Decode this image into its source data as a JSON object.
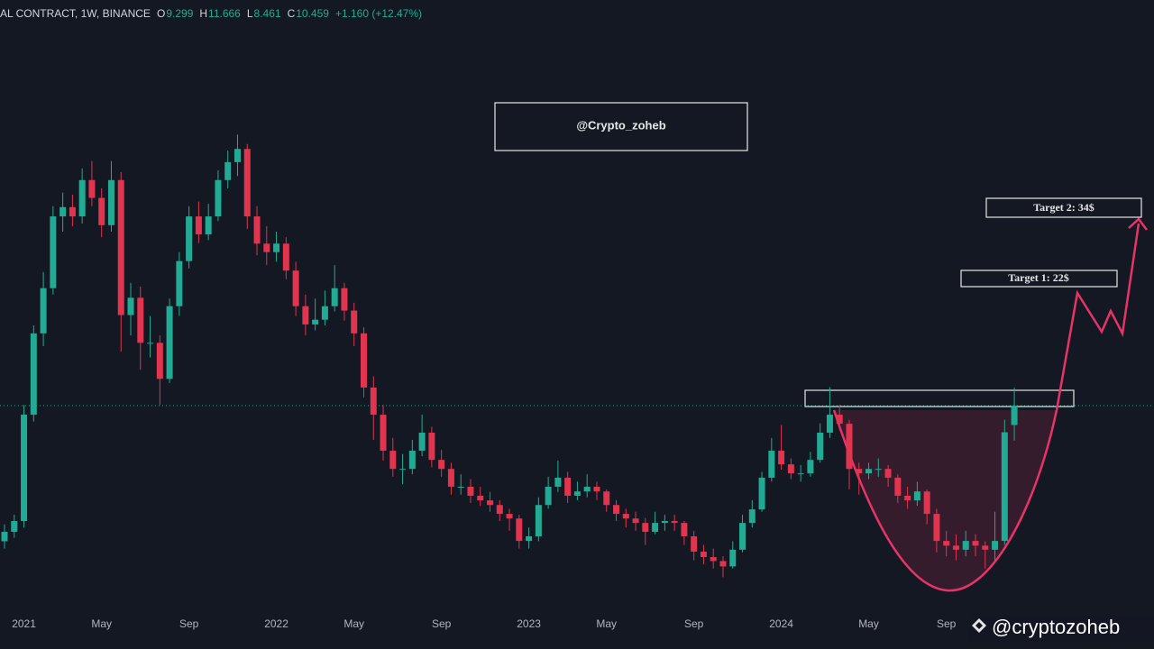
{
  "header": {
    "symbol": "AL CONTRACT, 1W, BINANCE",
    "o": "O",
    "h": "H",
    "l": "L",
    "c": "C",
    "change": "+1.160 (+12.47%)"
  },
  "annotations": {
    "author_box": "@Crypto_zoheb",
    "target_1": "Target 1: 22$",
    "target_2": "Target 2: 34$",
    "watermark": "@cryptozoheb"
  },
  "chart_data": {
    "type": "candlestick",
    "log_scale": true,
    "ylim": [
      2.98,
      122
    ],
    "up_color": "#22ab94",
    "down_color": "#e0344f",
    "categories": [
      null,
      null,
      "2021",
      null,
      null,
      null,
      null,
      null,
      null,
      null,
      "May",
      null,
      null,
      null,
      null,
      null,
      null,
      null,
      null,
      "Sep",
      null,
      null,
      null,
      null,
      null,
      null,
      null,
      null,
      "2022",
      null,
      null,
      null,
      null,
      null,
      null,
      null,
      "May",
      null,
      null,
      null,
      null,
      null,
      null,
      null,
      null,
      "Sep",
      null,
      null,
      null,
      null,
      null,
      null,
      null,
      null,
      "2023",
      null,
      null,
      null,
      null,
      null,
      null,
      null,
      "May",
      null,
      null,
      null,
      null,
      null,
      null,
      null,
      null,
      "Sep",
      null,
      null,
      null,
      null,
      null,
      null,
      null,
      null,
      "2024",
      null,
      null,
      null,
      null,
      null,
      null,
      null,
      null,
      "May",
      null,
      null,
      null,
      null,
      null,
      null,
      null,
      "Sep",
      null,
      null,
      null,
      null,
      null,
      null,
      null
    ],
    "ohlc": [
      [
        4.6,
        5.1,
        4.4,
        4.87
      ],
      [
        4.87,
        5.4,
        4.7,
        5.2
      ],
      [
        5.2,
        10.5,
        5.0,
        9.9
      ],
      [
        9.9,
        17.0,
        9.5,
        16.2
      ],
      [
        16.2,
        23.5,
        15.0,
        21.3
      ],
      [
        21.3,
        35.0,
        20.5,
        32.9
      ],
      [
        32.9,
        38.0,
        30.0,
        34.8
      ],
      [
        34.8,
        37.5,
        31.0,
        32.9
      ],
      [
        32.9,
        44.0,
        31.5,
        41.0
      ],
      [
        41.0,
        46.0,
        35.0,
        36.8
      ],
      [
        36.8,
        39.0,
        29.0,
        31.2
      ],
      [
        31.2,
        46.0,
        30.0,
        41.0
      ],
      [
        41.0,
        43.0,
        14.5,
        18.1
      ],
      [
        18.1,
        22.0,
        16.0,
        20.1
      ],
      [
        20.1,
        21.5,
        13.0,
        15.3
      ],
      [
        15.3,
        18.0,
        14.0,
        15.3
      ],
      [
        15.3,
        16.0,
        10.5,
        12.3
      ],
      [
        12.3,
        20.0,
        12.0,
        19.1
      ],
      [
        19.1,
        26.5,
        18.0,
        25.1
      ],
      [
        25.1,
        35.0,
        24.0,
        32.9
      ],
      [
        32.9,
        36.0,
        28.0,
        29.5
      ],
      [
        29.5,
        35.5,
        28.5,
        32.9
      ],
      [
        32.9,
        43.5,
        32.0,
        41.0
      ],
      [
        41.0,
        49.0,
        39.0,
        45.7
      ],
      [
        45.7,
        54.0,
        42.0,
        49.5
      ],
      [
        49.5,
        51.0,
        30.5,
        32.9
      ],
      [
        32.9,
        35.0,
        26.0,
        27.9
      ],
      [
        27.9,
        31.0,
        24.5,
        26.5
      ],
      [
        26.5,
        30.0,
        25.0,
        27.9
      ],
      [
        27.9,
        29.0,
        22.5,
        23.7
      ],
      [
        23.7,
        25.0,
        18.0,
        19.1
      ],
      [
        19.1,
        20.5,
        16.0,
        17.1
      ],
      [
        17.1,
        20.0,
        16.5,
        17.6
      ],
      [
        17.6,
        21.0,
        17.0,
        19.1
      ],
      [
        19.1,
        24.5,
        18.5,
        21.3
      ],
      [
        21.3,
        22.0,
        17.5,
        18.6
      ],
      [
        18.6,
        19.5,
        15.0,
        16.2
      ],
      [
        16.2,
        16.8,
        11.0,
        11.67
      ],
      [
        11.67,
        12.5,
        8.5,
        9.9
      ],
      [
        9.9,
        10.5,
        7.5,
        7.96
      ],
      [
        7.96,
        8.6,
        6.8,
        7.13
      ],
      [
        7.13,
        7.8,
        6.5,
        7.13
      ],
      [
        7.13,
        8.5,
        6.9,
        7.96
      ],
      [
        7.96,
        9.9,
        7.7,
        8.88
      ],
      [
        8.88,
        9.2,
        7.2,
        7.53
      ],
      [
        7.53,
        8.0,
        6.8,
        7.13
      ],
      [
        7.13,
        7.4,
        6.1,
        6.4
      ],
      [
        6.4,
        6.9,
        6.1,
        6.4
      ],
      [
        6.4,
        6.7,
        5.8,
        6.06
      ],
      [
        6.06,
        6.4,
        5.7,
        5.89
      ],
      [
        5.89,
        6.2,
        5.5,
        5.73
      ],
      [
        5.73,
        5.9,
        5.2,
        5.43
      ],
      [
        5.43,
        5.6,
        4.9,
        5.28
      ],
      [
        5.28,
        5.4,
        4.4,
        4.61
      ],
      [
        4.61,
        5.0,
        4.4,
        4.74
      ],
      [
        4.74,
        6.0,
        4.6,
        5.73
      ],
      [
        5.73,
        6.8,
        5.6,
        6.4
      ],
      [
        6.4,
        7.5,
        6.2,
        6.76
      ],
      [
        6.76,
        7.0,
        5.8,
        6.06
      ],
      [
        6.06,
        6.6,
        5.9,
        6.22
      ],
      [
        6.22,
        6.9,
        6.0,
        6.4
      ],
      [
        6.4,
        6.6,
        5.9,
        6.22
      ],
      [
        6.22,
        6.3,
        5.5,
        5.73
      ],
      [
        5.73,
        5.9,
        5.2,
        5.43
      ],
      [
        5.43,
        5.6,
        5.0,
        5.28
      ],
      [
        5.28,
        5.5,
        4.9,
        5.14
      ],
      [
        5.14,
        5.3,
        4.5,
        4.87
      ],
      [
        4.87,
        5.5,
        4.8,
        5.14
      ],
      [
        5.14,
        5.4,
        4.9,
        5.2
      ],
      [
        5.2,
        5.4,
        4.9,
        5.14
      ],
      [
        5.14,
        5.2,
        4.5,
        4.74
      ],
      [
        4.74,
        4.9,
        4.1,
        4.32
      ],
      [
        4.32,
        4.5,
        4.0,
        4.18
      ],
      [
        4.18,
        4.4,
        3.9,
        4.08
      ],
      [
        4.08,
        4.2,
        3.7,
        3.95
      ],
      [
        3.95,
        4.6,
        3.9,
        4.37
      ],
      [
        4.37,
        5.4,
        4.3,
        5.14
      ],
      [
        5.14,
        5.9,
        5.0,
        5.58
      ],
      [
        5.58,
        7.0,
        5.5,
        6.76
      ],
      [
        6.76,
        8.6,
        6.6,
        7.96
      ],
      [
        7.96,
        9.3,
        7.1,
        7.33
      ],
      [
        7.33,
        7.6,
        6.7,
        6.94
      ],
      [
        6.94,
        7.3,
        6.6,
        6.94
      ],
      [
        6.94,
        7.9,
        6.8,
        7.53
      ],
      [
        7.53,
        9.4,
        7.4,
        8.88
      ],
      [
        8.88,
        11.7,
        8.6,
        9.9
      ],
      [
        9.9,
        10.5,
        9.0,
        9.37
      ],
      [
        9.37,
        9.6,
        6.3,
        7.13
      ],
      [
        7.13,
        7.4,
        6.1,
        6.94
      ],
      [
        6.94,
        7.4,
        6.7,
        7.13
      ],
      [
        7.13,
        7.6,
        6.8,
        7.13
      ],
      [
        7.13,
        7.3,
        6.4,
        6.76
      ],
      [
        6.76,
        6.9,
        5.8,
        6.06
      ],
      [
        6.06,
        6.4,
        5.6,
        5.89
      ],
      [
        5.89,
        6.6,
        5.7,
        6.22
      ],
      [
        6.22,
        6.3,
        5.1,
        5.43
      ],
      [
        5.43,
        5.6,
        4.3,
        4.61
      ],
      [
        4.61,
        4.9,
        4.2,
        4.48
      ],
      [
        4.48,
        4.8,
        4.1,
        4.37
      ],
      [
        4.37,
        4.9,
        4.2,
        4.61
      ],
      [
        4.61,
        4.8,
        4.2,
        4.48
      ],
      [
        4.48,
        4.6,
        3.9,
        4.37
      ],
      [
        4.37,
        5.5,
        4.1,
        4.61
      ],
      [
        4.61,
        9.6,
        4.5,
        8.9
      ],
      [
        9.299,
        11.666,
        8.461,
        10.459
      ]
    ]
  }
}
